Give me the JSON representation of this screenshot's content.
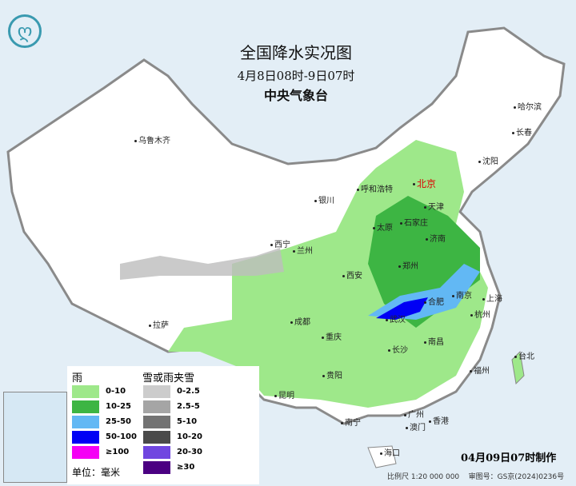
{
  "title": "全国降水实况图",
  "period": "4月8日08时-9日07时",
  "issuer": "中央气象台",
  "cities": [
    "乌鲁木齐",
    "哈尔滨",
    "长春",
    "沈阳",
    "北京",
    "天津",
    "呼和浩特",
    "石家庄",
    "银川",
    "太原",
    "济南",
    "西宁",
    "兰州",
    "郑州",
    "西安",
    "南京",
    "合肥",
    "上海",
    "武汉",
    "杭州",
    "成都",
    "拉萨",
    "重庆",
    "长沙",
    "南昌",
    "福州",
    "台北",
    "贵阳",
    "昆明",
    "南宁",
    "广州",
    "香港",
    "澳门",
    "海口"
  ],
  "legend": {
    "rain_title": "雨",
    "rain": [
      {
        "label": "0-10",
        "color": "#9ee88a"
      },
      {
        "label": "10-25",
        "color": "#3db543"
      },
      {
        "label": "25-50",
        "color": "#62b8f4"
      },
      {
        "label": "50-100",
        "color": "#0000f5"
      },
      {
        "label": "≥100",
        "color": "#f500f5"
      }
    ],
    "snow_title": "雪或雨夹雪",
    "snow": [
      {
        "label": "0-2.5",
        "color": "#cccccc"
      },
      {
        "label": "2.5-5",
        "color": "#a5a5a5"
      },
      {
        "label": "5-10",
        "color": "#737373"
      },
      {
        "label": "10-20",
        "color": "#4a4a4a"
      },
      {
        "label": "20-30",
        "color": "#7046e0"
      },
      {
        "label": "≥30",
        "color": "#4b0082"
      }
    ],
    "unit": "单位：毫米"
  },
  "made_time": "04月09日07时制作",
  "scale": "比例尺 1:20 000 000",
  "review_no": "审图号：GS京(2024)0236号"
}
